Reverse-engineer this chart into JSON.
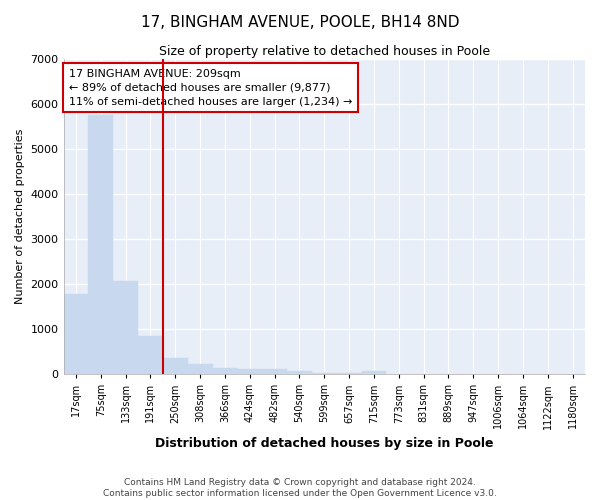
{
  "title": "17, BINGHAM AVENUE, POOLE, BH14 8ND",
  "subtitle": "Size of property relative to detached houses in Poole",
  "xlabel": "Distribution of detached houses by size in Poole",
  "ylabel": "Number of detached properties",
  "bar_color": "#c8d8ee",
  "bar_edge_color": "#c8d8ee",
  "categories": [
    "17sqm",
    "75sqm",
    "133sqm",
    "191sqm",
    "250sqm",
    "308sqm",
    "366sqm",
    "424sqm",
    "482sqm",
    "540sqm",
    "599sqm",
    "657sqm",
    "715sqm",
    "773sqm",
    "831sqm",
    "889sqm",
    "947sqm",
    "1006sqm",
    "1064sqm",
    "1122sqm",
    "1180sqm"
  ],
  "values": [
    1780,
    5750,
    2060,
    840,
    365,
    230,
    135,
    115,
    105,
    65,
    30,
    20,
    80,
    0,
    0,
    0,
    0,
    0,
    0,
    0,
    0
  ],
  "ylim": [
    0,
    7000
  ],
  "yticks": [
    0,
    1000,
    2000,
    3000,
    4000,
    5000,
    6000,
    7000
  ],
  "vline_color": "#cc0000",
  "annotation_text": "17 BINGHAM AVENUE: 209sqm\n← 89% of detached houses are smaller (9,877)\n11% of semi-detached houses are larger (1,234) →",
  "annotation_box_color": "#ffffff",
  "annotation_box_edge": "#cc0000",
  "footer_line1": "Contains HM Land Registry data © Crown copyright and database right 2024.",
  "footer_line2": "Contains public sector information licensed under the Open Government Licence v3.0.",
  "background_color": "#ffffff",
  "plot_bg_color": "#e8eef8",
  "grid_color": "#ffffff"
}
